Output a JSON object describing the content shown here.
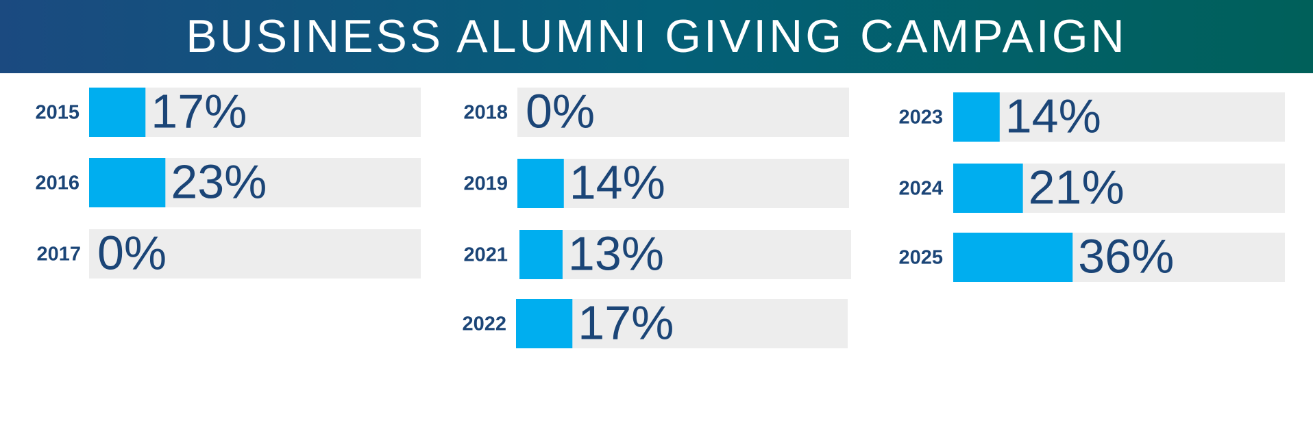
{
  "chart_data": {
    "type": "bar",
    "title": "BUSINESS ALUMNI GIVING CAMPAIGN",
    "categories": [
      "2015",
      "2016",
      "2017",
      "2018",
      "2019",
      "2021",
      "2022",
      "2023",
      "2024",
      "2025"
    ],
    "values": [
      17,
      23,
      0,
      0,
      14,
      13,
      17,
      14,
      21,
      36
    ],
    "value_labels": [
      "17%",
      "23%",
      "0%",
      "0%",
      "14%",
      "13%",
      "17%",
      "14%",
      "21%",
      "36%"
    ],
    "color": "#00aeef",
    "xlim": [
      0,
      100
    ]
  }
}
